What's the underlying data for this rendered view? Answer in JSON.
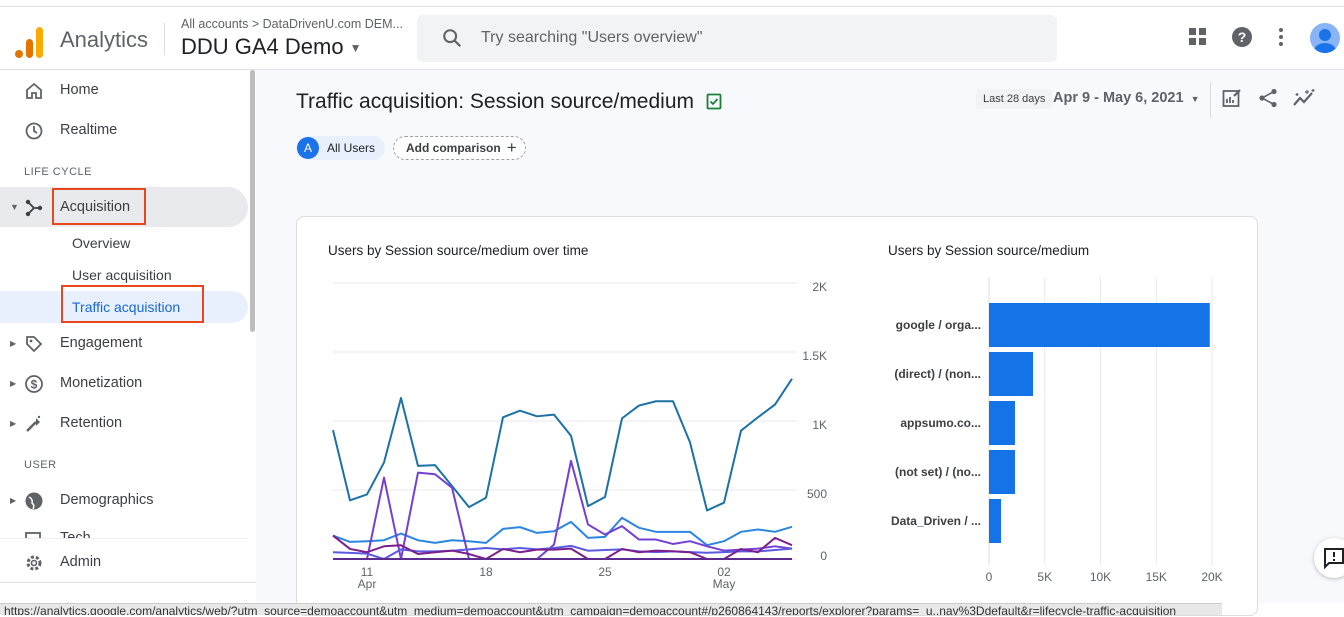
{
  "header": {
    "app_name": "Analytics",
    "breadcrumb": "All accounts > DataDrivenU.com DEM...",
    "property": "DDU GA4 Demo",
    "search_placeholder": "Try searching \"Users overview\""
  },
  "sidebar": {
    "home": "Home",
    "realtime": "Realtime",
    "section_lifecycle": "LIFE CYCLE",
    "acquisition": "Acquisition",
    "overview": "Overview",
    "user_acquisition": "User acquisition",
    "traffic_acquisition": "Traffic acquisition",
    "engagement": "Engagement",
    "monetization": "Monetization",
    "retention": "Retention",
    "section_user": "USER",
    "demographics": "Demographics",
    "tech": "Tech",
    "admin": "Admin"
  },
  "main": {
    "title": "Traffic acquisition: Session source/medium",
    "date_label": "Last 28 days",
    "date_range": "Apr 9 - May 6, 2021",
    "segment_letter": "A",
    "segment": "All Users",
    "add_comparison": "Add comparison"
  },
  "status_url": "https://analytics.google.com/analytics/web/?utm_source=demoaccount&utm_medium=demoaccount&utm_campaign=demoaccount#/p260864143/reports/explorer?params=_u..nav%3Ddefault&r=lifecycle-traffic-acquisition",
  "colors": {
    "accent": "#1a73e8",
    "bar": "#1473e6",
    "highlight": "#e8471d"
  },
  "chart_data": [
    {
      "type": "line",
      "title": "Users by Session source/medium over time",
      "x": [
        "Apr 9",
        "Apr 10",
        "Apr 11",
        "Apr 12",
        "Apr 13",
        "Apr 14",
        "Apr 15",
        "Apr 16",
        "Apr 17",
        "Apr 18",
        "Apr 19",
        "Apr 20",
        "Apr 21",
        "Apr 22",
        "Apr 23",
        "Apr 24",
        "Apr 25",
        "Apr 26",
        "Apr 27",
        "Apr 28",
        "Apr 29",
        "Apr 30",
        "May 1",
        "May 2",
        "May 3",
        "May 4",
        "May 5",
        "May 6"
      ],
      "x_ticks": [
        {
          "day": "11",
          "month": "Apr",
          "at": "Apr 11"
        },
        {
          "day": "18",
          "month": "",
          "at": "Apr 18"
        },
        {
          "day": "25",
          "month": "",
          "at": "Apr 25"
        },
        {
          "day": "02",
          "month": "May",
          "at": "May 2"
        }
      ],
      "y_ticks": [
        "0",
        "500",
        "1K",
        "1.5K",
        "2K"
      ],
      "ylim": [
        0,
        2000
      ],
      "y_axis_side": "right",
      "grid": true,
      "series": [
        {
          "color": "#1b72a6",
          "values": [
            934,
            425,
            468,
            699,
            1167,
            675,
            680,
            529,
            376,
            444,
            1027,
            1075,
            1034,
            1046,
            893,
            383,
            449,
            1019,
            1112,
            1143,
            1143,
            845,
            352,
            408,
            930,
            1027,
            1119,
            1306
          ]
        },
        {
          "color": "#2a86e0",
          "values": [
            170,
            124,
            129,
            136,
            184,
            136,
            117,
            136,
            129,
            117,
            218,
            231,
            189,
            201,
            269,
            153,
            160,
            299,
            226,
            197,
            197,
            197,
            100,
            129,
            197,
            214,
            197,
            233
          ]
        },
        {
          "color": "#7440d4",
          "values": [
            0,
            0,
            0,
            590,
            0,
            626,
            614,
            517,
            0,
            0,
            0,
            0,
            0,
            104,
            711,
            250,
            177,
            238,
            141,
            141,
            109,
            129,
            92,
            61,
            68,
            75,
            92,
            75
          ]
        },
        {
          "color": "#5a5be0",
          "values": [
            49,
            44,
            39,
            0,
            70,
            55,
            55,
            60,
            70,
            80,
            70,
            80,
            70,
            80,
            95,
            60,
            65,
            70,
            55,
            50,
            55,
            50,
            45,
            50,
            55,
            55,
            65,
            75
          ]
        },
        {
          "color": "#7b1f8c",
          "values": [
            170,
            73,
            49,
            92,
            100,
            36,
            49,
            61,
            36,
            0,
            73,
            49,
            68,
            68,
            75,
            0,
            0,
            73,
            49,
            61,
            56,
            49,
            0,
            0,
            73,
            49,
            153,
            100
          ]
        },
        {
          "color": "#5b2b8e",
          "values": [
            0,
            0,
            0,
            0,
            0,
            0,
            0,
            0,
            0,
            0,
            0,
            0,
            0,
            0,
            0,
            0,
            0,
            0,
            0,
            0,
            0,
            0,
            0,
            0,
            0,
            0,
            0,
            0
          ]
        }
      ]
    },
    {
      "type": "bar",
      "orientation": "horizontal",
      "title": "Users by Session source/medium",
      "categories": [
        "google / orga...",
        "(direct) / (non...",
        "appsumo.co...",
        "(not set) / (no...",
        "Data_Driven / ..."
      ],
      "values": [
        19800,
        3950,
        2330,
        2330,
        1080
      ],
      "x_ticks": [
        "0",
        "5K",
        "10K",
        "15K",
        "20K"
      ],
      "xlim": [
        0,
        20000
      ],
      "grid": true
    }
  ]
}
